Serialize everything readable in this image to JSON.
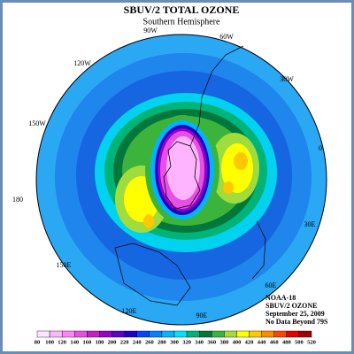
{
  "header": {
    "title": "SBUV/2 TOTAL OZONE",
    "subtitle": "Southern Hemisphere"
  },
  "longitude_labels": [
    "90W",
    "60W",
    "120W",
    "30W",
    "150W",
    "0",
    "180",
    "30E",
    "150E",
    "60E",
    "120E",
    "90E"
  ],
  "info": [
    "NOAA-18",
    "SBUV/2 OZONE",
    "September 25, 2009",
    "No Data Beyond 79S"
  ],
  "colorbar": {
    "ticks": [
      80,
      100,
      120,
      140,
      160,
      180,
      200,
      220,
      240,
      260,
      280,
      300,
      320,
      340,
      360,
      380,
      400,
      420,
      440,
      460,
      480,
      500,
      520
    ],
    "colors": [
      "#ffe6ff",
      "#ffb4ff",
      "#ff82ff",
      "#e650e6",
      "#c81ec8",
      "#9600c8",
      "#5a00c8",
      "#1e00c8",
      "#0046ff",
      "#0082ff",
      "#00b4ff",
      "#00e1ff",
      "#00b478",
      "#00783c",
      "#3cb43c",
      "#a0dc3c",
      "#ffff00",
      "#ffc800",
      "#ff8c00",
      "#ff4600",
      "#e60000",
      "#a00000"
    ]
  }
}
